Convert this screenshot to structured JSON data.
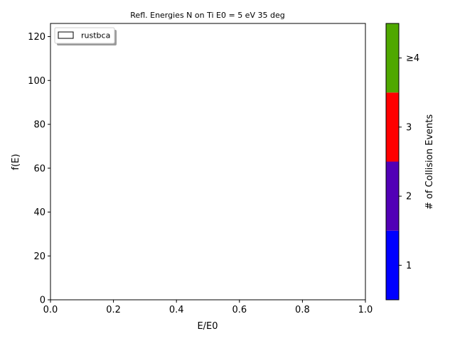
{
  "chart_data": {
    "type": "histogram",
    "title": "Refl. Energies N on Ti E0 = 5 eV 35 deg",
    "xlabel": "E/E0",
    "ylabel": "f(E)",
    "xlim": [
      0.0,
      1.0
    ],
    "ylim": [
      0,
      126
    ],
    "xticks": [
      0.0,
      0.2,
      0.4,
      0.6,
      0.8,
      1.0
    ],
    "xtick_labels": [
      "0.0",
      "0.2",
      "0.4",
      "0.6",
      "0.8",
      "1.0"
    ],
    "yticks": [
      0,
      20,
      40,
      60,
      80,
      100,
      120
    ],
    "ytick_labels": [
      "0",
      "20",
      "40",
      "60",
      "80",
      "100",
      "120"
    ],
    "grid": false,
    "legend": {
      "position": "top-left",
      "entries": [
        "rustbca"
      ]
    },
    "series": [
      {
        "name": "rustbca",
        "values": []
      }
    ],
    "colorbar": {
      "label": "# of Collision Events",
      "categories": [
        "1",
        "2",
        "3",
        "≥4"
      ],
      "colors": [
        "#0000ff",
        "#5100b6",
        "#ff0000",
        "#4fa800"
      ]
    }
  }
}
